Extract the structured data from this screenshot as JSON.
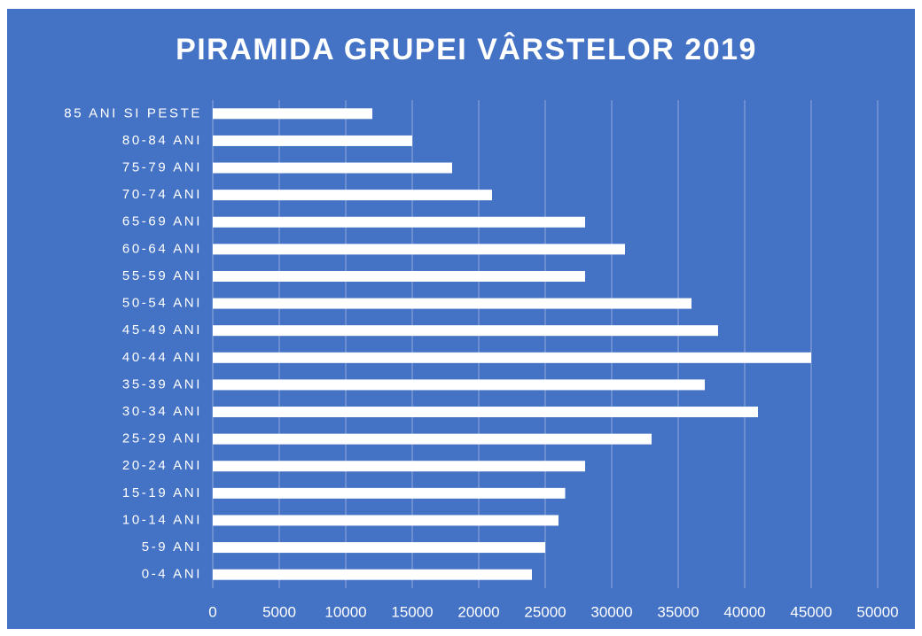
{
  "chart_data": {
    "type": "bar",
    "orientation": "horizontal",
    "title": "PIRAMIDA GRUPEI VÂRSTELOR 2019",
    "categories": [
      "0-4 ANI",
      "5-9 ANI",
      "10-14 ANI",
      "15-19 ANI",
      "20-24 ANI",
      "25-29 ANI",
      "30-34 ANI",
      "35-39 ANI",
      "40-44 ANI",
      "45-49 ANI",
      "50-54 ANI",
      "55-59 ANI",
      "60-64 ANI",
      "65-69 ANI",
      "70-74 ANI",
      "75-79 ANI",
      "80-84 ANI",
      "85 ANI SI PESTE"
    ],
    "values": [
      24000,
      25000,
      26000,
      26500,
      28000,
      33000,
      41000,
      37000,
      45000,
      38000,
      36000,
      28000,
      31000,
      28000,
      21000,
      18000,
      15000,
      12000
    ],
    "color": "#ffffff",
    "background": "#4472c4",
    "grid_color": "#8faadc",
    "xlim": [
      0,
      50000
    ],
    "xticks": [
      0,
      5000,
      10000,
      15000,
      20000,
      25000,
      30000,
      35000,
      40000,
      45000,
      50000
    ],
    "grid": true
  }
}
